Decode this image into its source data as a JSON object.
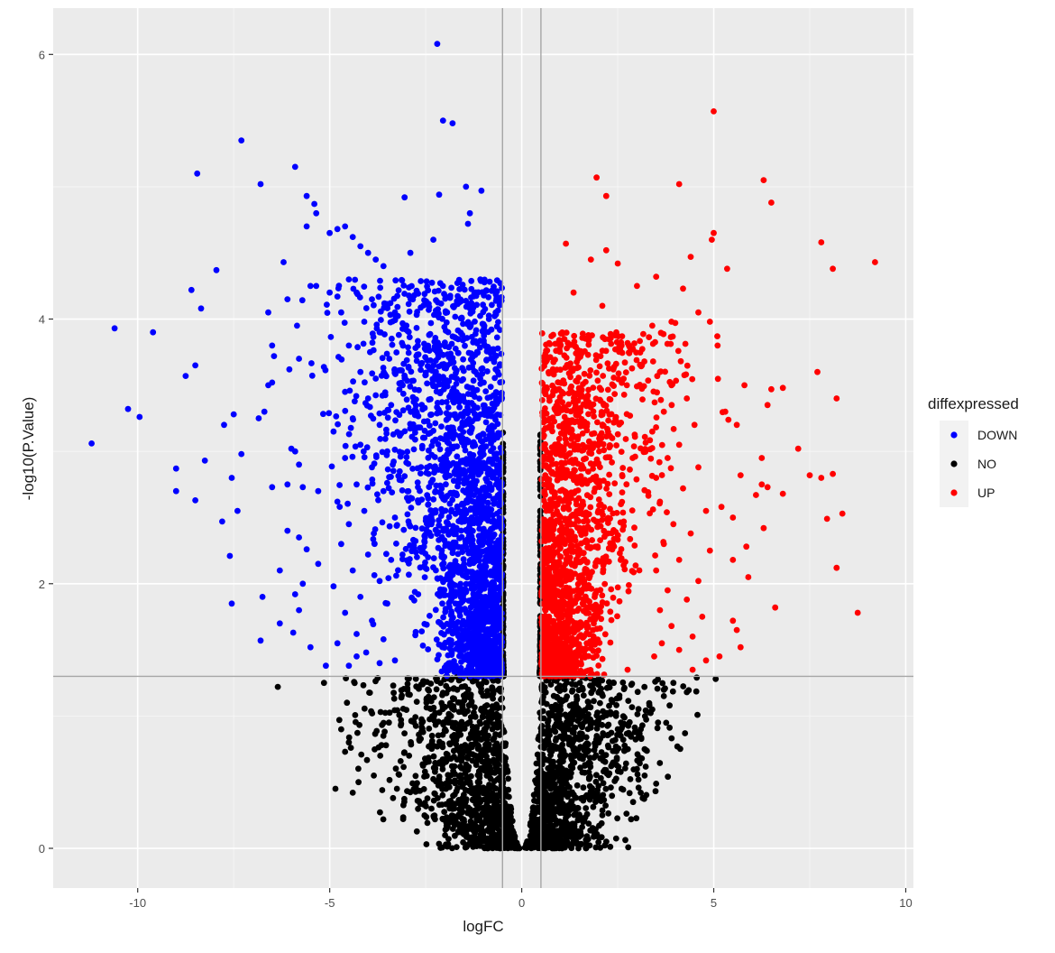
{
  "chart_data": {
    "type": "scatter",
    "title": "",
    "xlabel": "logFC",
    "ylabel": "-log10(P.Value)",
    "xlim": [
      -12.2,
      10.2
    ],
    "ylim": [
      -0.3,
      6.35
    ],
    "x_ticks": [
      -10,
      -5,
      0,
      5,
      10
    ],
    "x_tick_labels": [
      "-10",
      "-5",
      "0",
      "5",
      "10"
    ],
    "y_ticks": [
      0,
      2,
      4,
      6
    ],
    "y_tick_labels": [
      "0",
      "2",
      "4",
      "6"
    ],
    "grid": true,
    "background": "#ebebeb",
    "thresholds": {
      "logfc": [
        -0.5,
        0.5
      ],
      "neg_log10_p": 1.3
    },
    "legend": {
      "title": "diffexpressed",
      "position": "right",
      "entries": [
        {
          "label": "DOWN",
          "color": "#0000ff"
        },
        {
          "label": "NO",
          "color": "#000000"
        },
        {
          "label": "UP",
          "color": "#ff0000"
        }
      ]
    },
    "series": [
      {
        "name": "DOWN",
        "color": "#0000ff",
        "points": [
          [
            -2.2,
            6.08
          ],
          [
            -2.05,
            5.5
          ],
          [
            -1.8,
            5.48
          ],
          [
            -7.3,
            5.35
          ],
          [
            -5.9,
            5.15
          ],
          [
            -8.45,
            5.1
          ],
          [
            -6.8,
            5.02
          ],
          [
            -1.45,
            5.0
          ],
          [
            -1.05,
            4.97
          ],
          [
            -2.15,
            4.94
          ],
          [
            -3.05,
            4.92
          ],
          [
            -5.6,
            4.93
          ],
          [
            -5.4,
            4.87
          ],
          [
            -5.35,
            4.8
          ],
          [
            -5.6,
            4.7
          ],
          [
            -4.8,
            4.68
          ],
          [
            -5.0,
            4.65
          ],
          [
            -2.3,
            4.6
          ],
          [
            -1.35,
            4.8
          ],
          [
            -1.4,
            4.72
          ],
          [
            -2.9,
            4.5
          ],
          [
            -8.6,
            4.22
          ],
          [
            -6.2,
            4.43
          ],
          [
            -7.95,
            4.37
          ],
          [
            -8.35,
            4.08
          ],
          [
            -6.1,
            4.15
          ],
          [
            -5.5,
            4.25
          ],
          [
            -5.35,
            4.25
          ],
          [
            -5.0,
            4.2
          ],
          [
            -4.8,
            4.17
          ],
          [
            -10.6,
            3.93
          ],
          [
            -9.6,
            3.9
          ],
          [
            -6.6,
            4.05
          ],
          [
            -6.5,
            3.8
          ],
          [
            -6.45,
            3.72
          ],
          [
            -5.85,
            3.95
          ],
          [
            -6.05,
            3.62
          ],
          [
            -8.5,
            3.65
          ],
          [
            -8.75,
            3.57
          ],
          [
            -5.8,
            3.7
          ],
          [
            -6.5,
            3.52
          ],
          [
            -6.6,
            3.5
          ],
          [
            -10.25,
            3.32
          ],
          [
            -9.95,
            3.26
          ],
          [
            -7.5,
            3.28
          ],
          [
            -6.85,
            3.25
          ],
          [
            -7.75,
            3.2
          ],
          [
            -6.7,
            3.3
          ],
          [
            -11.2,
            3.06
          ],
          [
            -7.3,
            2.98
          ],
          [
            -6.0,
            3.02
          ],
          [
            -5.9,
            3.0
          ],
          [
            -5.8,
            2.9
          ],
          [
            -8.25,
            2.93
          ],
          [
            -9.0,
            2.87
          ],
          [
            -7.55,
            2.8
          ],
          [
            -6.5,
            2.73
          ],
          [
            -6.1,
            2.75
          ],
          [
            -5.7,
            2.73
          ],
          [
            -5.3,
            2.7
          ],
          [
            -9.0,
            2.7
          ],
          [
            -8.5,
            2.63
          ],
          [
            -7.4,
            2.55
          ],
          [
            -7.8,
            2.47
          ],
          [
            -6.1,
            2.4
          ],
          [
            -5.8,
            2.35
          ],
          [
            -5.6,
            2.26
          ],
          [
            -7.6,
            2.21
          ],
          [
            -6.3,
            2.1
          ],
          [
            -5.3,
            2.15
          ],
          [
            -5.7,
            2.0
          ],
          [
            -5.9,
            1.92
          ],
          [
            -6.75,
            1.9
          ],
          [
            -7.55,
            1.85
          ],
          [
            -5.8,
            1.8
          ],
          [
            -6.3,
            1.7
          ],
          [
            -5.95,
            1.63
          ],
          [
            -6.8,
            1.57
          ],
          [
            -5.5,
            1.52
          ],
          [
            -5.1,
            1.38
          ],
          [
            -4.3,
            1.45
          ],
          [
            -3.7,
            1.4
          ],
          [
            -4.6,
            4.7
          ],
          [
            -4.4,
            4.62
          ],
          [
            -4.2,
            4.55
          ],
          [
            -4.0,
            4.5
          ],
          [
            -3.8,
            4.45
          ],
          [
            -3.6,
            4.4
          ],
          [
            -4.5,
            4.3
          ],
          [
            -4.3,
            4.2
          ],
          [
            -3.9,
            4.15
          ],
          [
            -3.5,
            4.1
          ],
          [
            -3.3,
            4.05
          ],
          [
            -4.7,
            4.05
          ],
          [
            -4.1,
            3.98
          ],
          [
            -3.7,
            3.9
          ],
          [
            -3.2,
            3.88
          ],
          [
            -4.5,
            3.8
          ],
          [
            -3.95,
            3.75
          ],
          [
            -3.45,
            3.7
          ],
          [
            -4.2,
            3.6
          ],
          [
            -3.8,
            3.55
          ],
          [
            -3.1,
            3.5
          ],
          [
            -4.6,
            3.45
          ],
          [
            -4.0,
            3.4
          ],
          [
            -3.4,
            3.35
          ],
          [
            -4.4,
            3.25
          ],
          [
            -3.7,
            3.2
          ],
          [
            -4.9,
            3.15
          ],
          [
            -4.2,
            3.05
          ],
          [
            -3.5,
            3.0
          ],
          [
            -4.6,
            2.95
          ],
          [
            -3.9,
            2.88
          ],
          [
            -4.3,
            2.75
          ],
          [
            -3.6,
            2.7
          ],
          [
            -4.8,
            2.62
          ],
          [
            -4.1,
            2.55
          ],
          [
            -3.3,
            2.5
          ],
          [
            -4.5,
            2.45
          ],
          [
            -3.85,
            2.38
          ],
          [
            -4.7,
            2.3
          ],
          [
            -4.0,
            2.22
          ],
          [
            -3.4,
            2.18
          ],
          [
            -4.4,
            2.1
          ],
          [
            -3.7,
            2.02
          ],
          [
            -4.9,
            1.98
          ],
          [
            -4.2,
            1.9
          ],
          [
            -3.5,
            1.85
          ],
          [
            -4.6,
            1.78
          ],
          [
            -3.9,
            1.72
          ],
          [
            -4.3,
            1.62
          ],
          [
            -3.6,
            1.58
          ],
          [
            -4.8,
            1.55
          ],
          [
            -4.05,
            1.48
          ],
          [
            -3.3,
            1.42
          ],
          [
            -4.5,
            1.38
          ]
        ]
      },
      {
        "name": "UP",
        "color": "#ff0000",
        "points": [
          [
            5.0,
            5.57
          ],
          [
            1.95,
            5.07
          ],
          [
            6.3,
            5.05
          ],
          [
            4.1,
            5.02
          ],
          [
            2.2,
            4.93
          ],
          [
            6.5,
            4.88
          ],
          [
            5.0,
            4.65
          ],
          [
            4.95,
            4.6
          ],
          [
            7.8,
            4.58
          ],
          [
            1.15,
            4.57
          ],
          [
            2.2,
            4.52
          ],
          [
            9.2,
            4.43
          ],
          [
            8.1,
            4.38
          ],
          [
            5.35,
            4.38
          ],
          [
            4.4,
            4.47
          ],
          [
            1.8,
            4.45
          ],
          [
            2.5,
            4.42
          ],
          [
            3.5,
            4.32
          ],
          [
            4.2,
            4.23
          ],
          [
            3.0,
            4.25
          ],
          [
            1.35,
            4.2
          ],
          [
            2.1,
            4.1
          ],
          [
            4.6,
            4.05
          ],
          [
            3.9,
            3.98
          ],
          [
            4.0,
            3.97
          ],
          [
            4.9,
            3.98
          ],
          [
            3.4,
            3.95
          ],
          [
            5.1,
            3.8
          ],
          [
            7.7,
            3.6
          ],
          [
            5.8,
            3.5
          ],
          [
            6.5,
            3.47
          ],
          [
            6.8,
            3.48
          ],
          [
            8.2,
            3.4
          ],
          [
            6.4,
            3.35
          ],
          [
            5.3,
            3.3
          ],
          [
            5.6,
            3.2
          ],
          [
            7.2,
            3.02
          ],
          [
            6.25,
            2.95
          ],
          [
            5.7,
            2.82
          ],
          [
            7.5,
            2.82
          ],
          [
            7.8,
            2.8
          ],
          [
            8.1,
            2.83
          ],
          [
            6.25,
            2.75
          ],
          [
            6.4,
            2.73
          ],
          [
            6.8,
            2.68
          ],
          [
            6.1,
            2.67
          ],
          [
            5.2,
            2.58
          ],
          [
            8.35,
            2.53
          ],
          [
            7.95,
            2.49
          ],
          [
            5.5,
            2.5
          ],
          [
            6.3,
            2.42
          ],
          [
            5.85,
            2.28
          ],
          [
            5.5,
            2.18
          ],
          [
            8.2,
            2.12
          ],
          [
            5.9,
            2.05
          ],
          [
            6.6,
            1.82
          ],
          [
            8.75,
            1.78
          ],
          [
            5.5,
            1.72
          ],
          [
            5.6,
            1.65
          ],
          [
            5.7,
            1.52
          ],
          [
            5.15,
            1.45
          ],
          [
            4.45,
            1.35
          ],
          [
            3.6,
            3.6
          ],
          [
            3.9,
            3.5
          ],
          [
            4.3,
            3.4
          ],
          [
            3.7,
            3.3
          ],
          [
            4.5,
            3.2
          ],
          [
            3.4,
            3.15
          ],
          [
            4.1,
            3.05
          ],
          [
            3.8,
            2.95
          ],
          [
            4.6,
            2.88
          ],
          [
            3.5,
            2.8
          ],
          [
            4.2,
            2.72
          ],
          [
            3.6,
            2.62
          ],
          [
            4.8,
            2.55
          ],
          [
            3.95,
            2.45
          ],
          [
            4.4,
            2.38
          ],
          [
            3.7,
            2.3
          ],
          [
            4.9,
            2.25
          ],
          [
            4.1,
            2.18
          ],
          [
            3.5,
            2.1
          ],
          [
            4.6,
            2.02
          ],
          [
            3.8,
            1.95
          ],
          [
            4.3,
            1.88
          ],
          [
            3.6,
            1.8
          ],
          [
            4.7,
            1.75
          ],
          [
            3.9,
            1.68
          ],
          [
            4.45,
            1.6
          ],
          [
            3.65,
            1.55
          ],
          [
            4.1,
            1.5
          ],
          [
            3.45,
            1.45
          ],
          [
            4.8,
            1.42
          ]
        ]
      },
      {
        "name": "NO",
        "color": "#000000",
        "points": [
          [
            -6.35,
            1.22
          ],
          [
            -5.15,
            1.25
          ],
          [
            -4.55,
            1.1
          ],
          [
            -4.75,
            0.97
          ],
          [
            -4.7,
            0.9
          ],
          [
            -4.5,
            0.8
          ],
          [
            -4.45,
            0.76
          ],
          [
            -4.6,
            0.73
          ],
          [
            -3.65,
            0.78
          ],
          [
            -3.85,
            0.55
          ],
          [
            -4.25,
            0.5
          ],
          [
            -4.85,
            0.45
          ],
          [
            -4.4,
            0.42
          ],
          [
            -3.35,
            0.38
          ],
          [
            -3.25,
            0.45
          ],
          [
            -2.05,
            0.22
          ],
          [
            -2.35,
            0.3
          ],
          [
            -1.95,
            0.15
          ],
          [
            3.7,
            1.15
          ],
          [
            3.4,
            1.05
          ],
          [
            3.55,
            0.95
          ],
          [
            3.1,
            0.9
          ],
          [
            3.2,
            0.75
          ],
          [
            3.0,
            0.6
          ],
          [
            3.2,
            0.55
          ],
          [
            2.6,
            0.45
          ],
          [
            3.1,
            0.42
          ],
          [
            2.9,
            0.35
          ],
          [
            3.15,
            0.38
          ],
          [
            1.6,
            0.2
          ],
          [
            2.1,
            0.25
          ],
          [
            5.05,
            1.28
          ],
          [
            3.95,
            1.25
          ],
          [
            4.3,
            1.18
          ],
          [
            3.85,
            1.08
          ]
        ]
      }
    ]
  }
}
